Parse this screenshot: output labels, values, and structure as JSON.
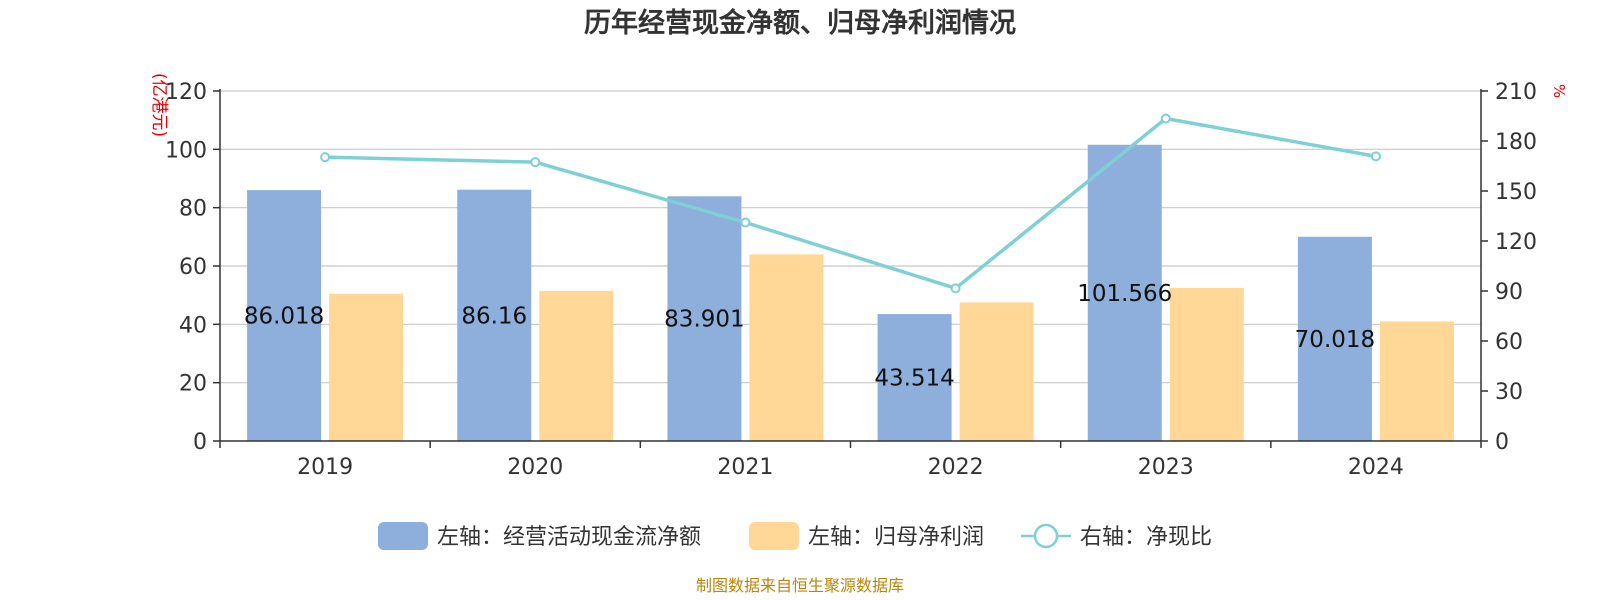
{
  "chart_data": {
    "type": "bar",
    "title": "历年经营现金净额、归母净利润情况",
    "categories": [
      "2019",
      "2020",
      "2021",
      "2022",
      "2023",
      "2024"
    ],
    "left_axis": {
      "unit": "(亿港元)",
      "ylim": [
        0,
        120
      ],
      "ticks": [
        "0",
        "20",
        "40",
        "60",
        "80",
        "100",
        "120"
      ]
    },
    "right_axis": {
      "unit": "%",
      "ylim": [
        0,
        210
      ],
      "ticks": [
        "0",
        "30",
        "60",
        "90",
        "120",
        "150",
        "180",
        "210"
      ]
    },
    "series": [
      {
        "name": "左轴：经营活动现金流净额",
        "type": "bar",
        "axis": "left",
        "color": "#8eaedb",
        "values": [
          86.018,
          86.16,
          83.901,
          43.514,
          101.566,
          70.018
        ],
        "labels": [
          "86.018",
          "86.16",
          "83.901",
          "43.514",
          "101.566",
          "70.018"
        ]
      },
      {
        "name": "左轴：归母净利润",
        "type": "bar",
        "axis": "left",
        "color": "#ffd897",
        "values": [
          50.5,
          51.5,
          64.0,
          47.5,
          52.5,
          41.0
        ]
      },
      {
        "name": "右轴：净现比",
        "type": "line",
        "axis": "right",
        "color": "#7fd0d6",
        "values": [
          170.3,
          167.3,
          131.1,
          91.6,
          193.5,
          170.8
        ]
      }
    ],
    "grid": true,
    "legend": "bottom-center"
  },
  "source_note": "制图数据来自恒生聚源数据库"
}
